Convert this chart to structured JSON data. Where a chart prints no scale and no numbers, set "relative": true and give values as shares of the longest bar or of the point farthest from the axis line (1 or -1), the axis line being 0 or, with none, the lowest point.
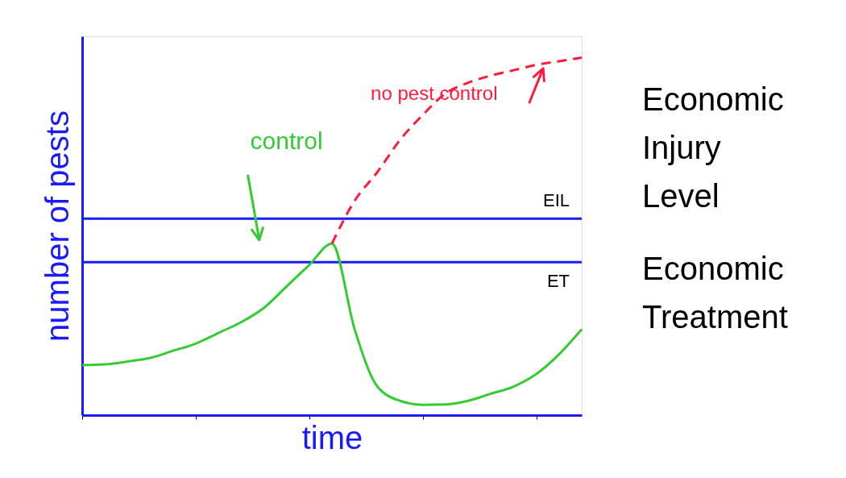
{
  "chart_data": {
    "type": "line",
    "relative": true,
    "xlabel": "time",
    "ylabel": "number of pests",
    "categories": [
      null,
      null,
      null,
      null,
      null,
      null,
      null,
      null,
      null,
      null,
      null,
      null,
      null,
      null,
      null,
      null,
      null,
      null,
      null,
      null,
      null,
      null,
      null
    ],
    "series": [
      {
        "name": "control",
        "color": "#33cc33",
        "line_style": "solid",
        "values": [
          0.14,
          0.142,
          0.15,
          0.16,
          0.18,
          0.2,
          0.23,
          0.26,
          0.3,
          0.36,
          0.42,
          0.48,
          0.24,
          0.08,
          0.04,
          0.029,
          0.03,
          0.04,
          0.06,
          0.08,
          0.115,
          0.17,
          0.24
        ]
      },
      {
        "name": "no pest control",
        "color": "#ff1a3c",
        "line_style": "dashed",
        "values": [
          null,
          null,
          null,
          null,
          null,
          null,
          null,
          null,
          null,
          null,
          null,
          0.48,
          0.6,
          0.68,
          0.77,
          0.84,
          0.9,
          0.93,
          0.95,
          0.965,
          0.98,
          0.99,
          1.0
        ]
      }
    ],
    "ref_lines": [
      {
        "axis": "y",
        "value": 0.55,
        "label": "EIL",
        "color": "#1a1aff"
      },
      {
        "axis": "y",
        "value": 0.428,
        "label": "ET",
        "color": "#1a1aff"
      }
    ],
    "annotations": [
      "Economic Injury Level",
      "Economic Treatment"
    ],
    "grid": false,
    "marker": "none"
  }
}
